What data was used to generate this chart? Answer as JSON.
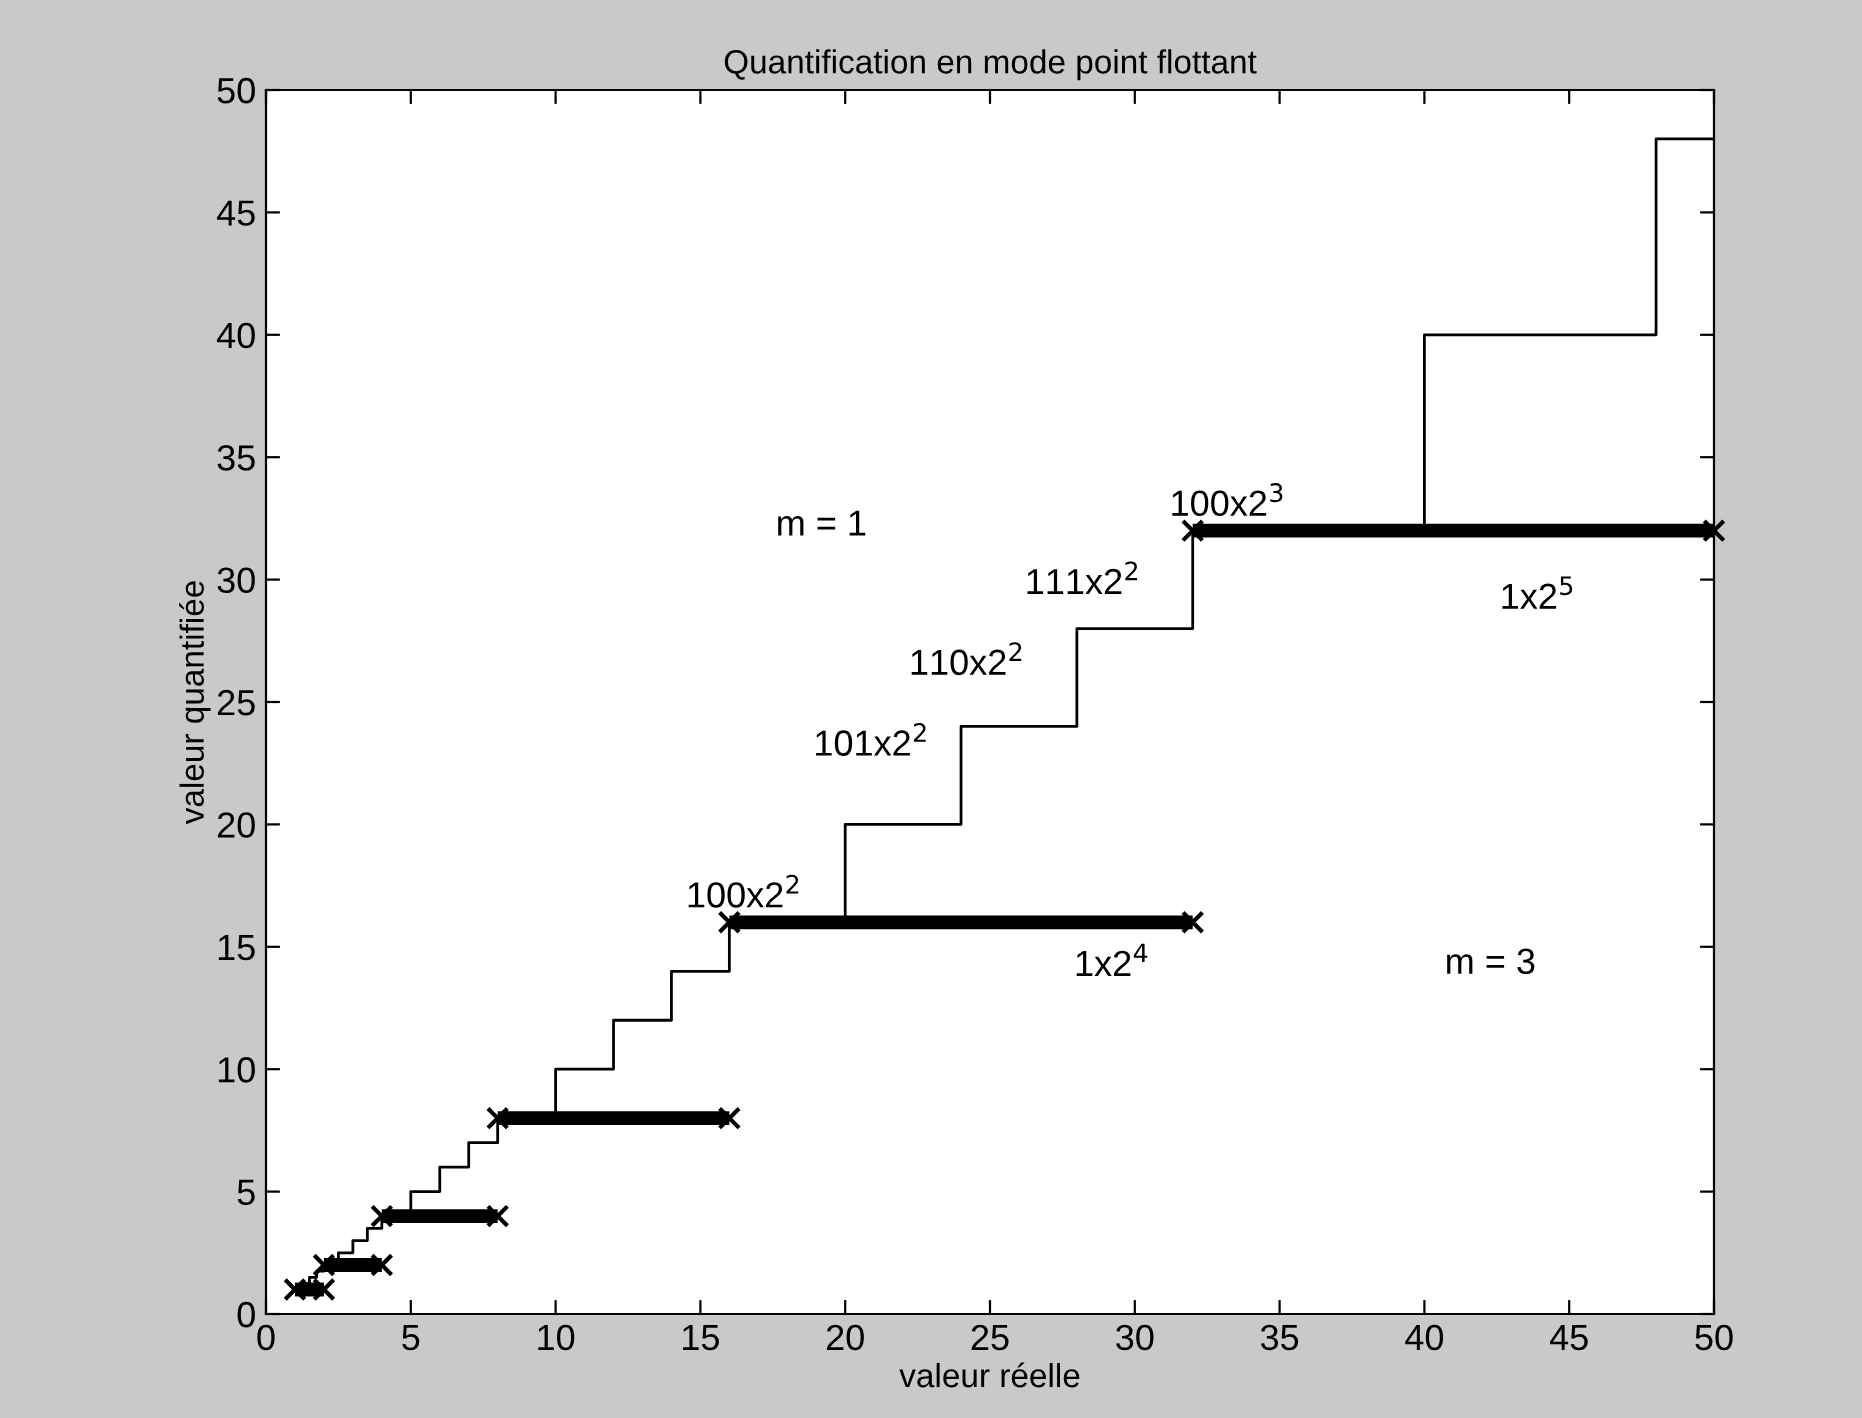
{
  "chart_data": {
    "type": "step",
    "title": "Quantification en mode point flottant",
    "xlabel": "valeur réelle",
    "ylabel": "valeur quantifiée",
    "xlim": [
      0,
      50
    ],
    "ylim": [
      0,
      50
    ],
    "xticks": [
      0,
      5,
      10,
      15,
      20,
      25,
      30,
      35,
      40,
      45,
      50
    ],
    "yticks": [
      0,
      5,
      10,
      15,
      20,
      25,
      30,
      35,
      40,
      45,
      50
    ],
    "grid": false,
    "legend": false,
    "series": [
      {
        "color": "#000000",
        "x": [
          1,
          1.25,
          1.5,
          1.75,
          2,
          2.5,
          3,
          3.5,
          4,
          5,
          6,
          7,
          8,
          10,
          12,
          14,
          16,
          20,
          24,
          28,
          32,
          40,
          48,
          50
        ],
        "values": [
          1,
          1.25,
          1.5,
          1.75,
          2,
          2.5,
          3,
          3.5,
          4,
          5,
          6,
          7,
          8,
          10,
          12,
          14,
          16,
          20,
          24,
          28,
          32,
          40,
          48,
          48
        ]
      },
      {
        "type": "line",
        "color": "#000000",
        "marker": "cross",
        "x": [
          1,
          2
        ],
        "values": [
          1,
          1
        ]
      },
      {
        "type": "line",
        "color": "#000000",
        "marker": "cross",
        "x": [
          2,
          4
        ],
        "values": [
          2,
          2
        ]
      },
      {
        "type": "line",
        "color": "#000000",
        "marker": "cross",
        "x": [
          4,
          8
        ],
        "values": [
          4,
          4
        ]
      },
      {
        "type": "line",
        "color": "#000000",
        "marker": "cross",
        "x": [
          8,
          16
        ],
        "values": [
          8,
          8
        ]
      },
      {
        "type": "line",
        "color": "#000000",
        "marker": "cross",
        "x": [
          16,
          32
        ],
        "values": [
          16,
          16
        ]
      },
      {
        "type": "line",
        "color": "#000000",
        "marker": "cross",
        "x": [
          32,
          50
        ],
        "values": [
          32,
          32
        ]
      }
    ],
    "annotations": [
      "m = 1",
      "100x2$^{3}$",
      "1x2$^{5}$",
      "111x2$^{2}$",
      "110x2$^{2}$",
      "101x2$^{2}$",
      "100x2$^{2}$",
      "1x2$^{4}$",
      "m = 3"
    ]
  }
}
